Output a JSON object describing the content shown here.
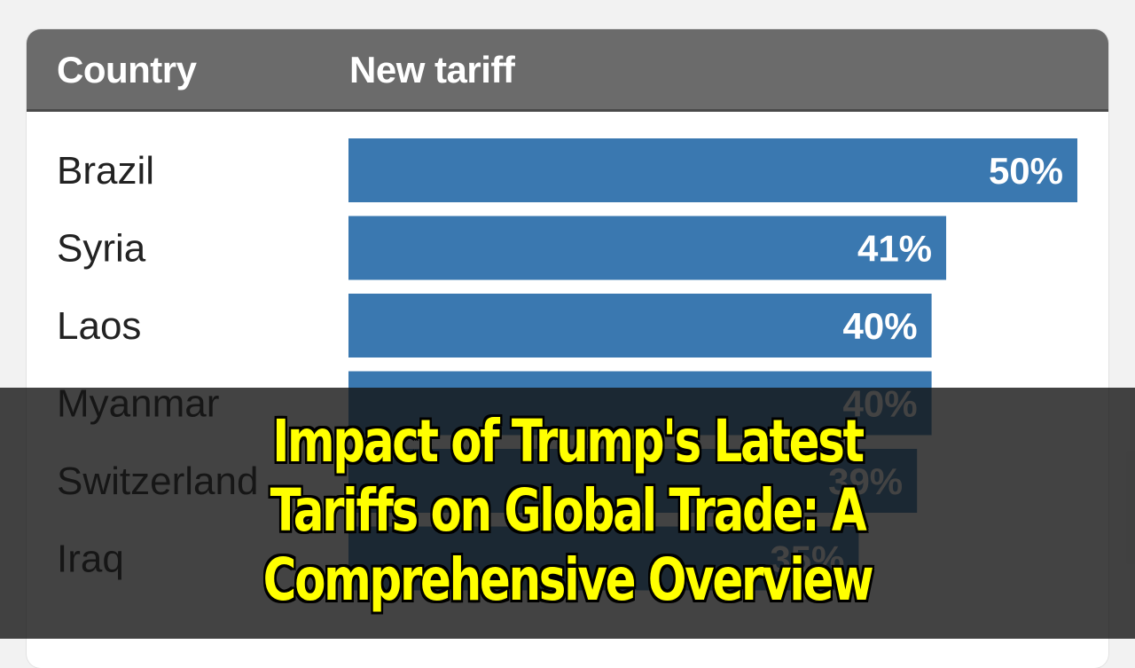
{
  "table": {
    "header_country": "Country",
    "header_tariff": "New tariff"
  },
  "chart_data": {
    "type": "bar",
    "orientation": "horizontal",
    "categories": [
      "Brazil",
      "Syria",
      "Laos",
      "Myanmar",
      "Switzerland",
      "Iraq"
    ],
    "values": [
      50,
      41,
      40,
      40,
      39,
      35
    ],
    "value_labels": [
      "50%",
      "41%",
      "40%",
      "40%",
      "39%",
      "35%"
    ],
    "xlim": [
      0,
      50
    ],
    "bar_color": "#3a78b0",
    "grid": false,
    "legend": "none"
  },
  "overlay": {
    "headline_lines": [
      "Impact of Trump's Latest",
      "Tariffs on Global Trade: A",
      "Comprehensive Overview"
    ],
    "text_color": "#ffff00"
  }
}
